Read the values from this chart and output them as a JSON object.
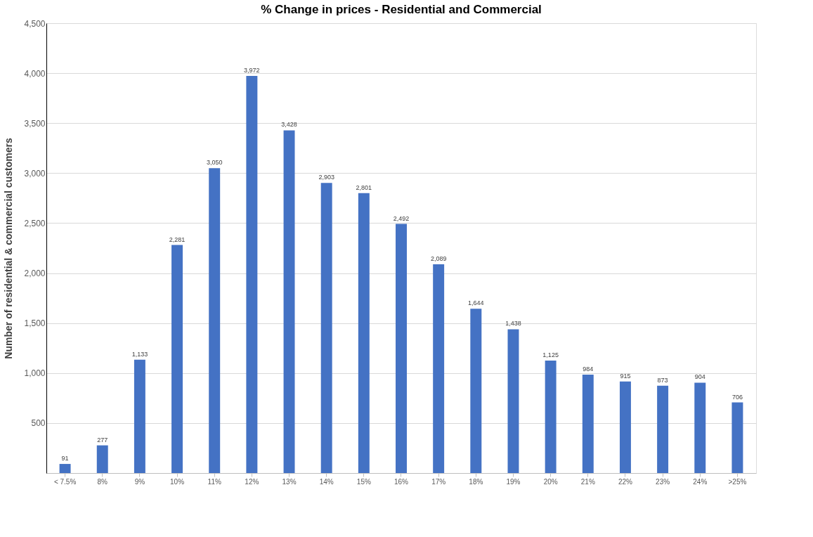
{
  "chart_data": {
    "type": "bar",
    "title": "% Change in prices - Residential and Commercial",
    "ylabel": "Number of residential & commercial customers",
    "categories": [
      "< 7.5%",
      "8%",
      "9%",
      "10%",
      "11%",
      "12%",
      "13%",
      "14%",
      "15%",
      "16%",
      "17%",
      "18%",
      "19%",
      "20%",
      "21%",
      "22%",
      "23%",
      "24%",
      ">25%"
    ],
    "values": [
      91,
      277,
      1133,
      2281,
      3050,
      3972,
      3428,
      2903,
      2801,
      2492,
      2089,
      1644,
      1438,
      1125,
      984,
      915,
      873,
      904,
      706
    ],
    "value_labels": [
      "91",
      "277",
      "1,133",
      "2,281",
      "3,050",
      "3,972",
      "3,428",
      "2,903",
      "2,801",
      "2,492",
      "2,089",
      "1,644",
      "1,438",
      "1,125",
      "984",
      "915",
      "873",
      "904",
      "706"
    ],
    "color": "#4472c4",
    "ylim": [
      0,
      4500
    ],
    "yticks": [
      500,
      {
        "value": 1000,
        "label": "1,000"
      },
      {
        "value": 1500,
        "label": "1,500"
      },
      {
        "value": 2000,
        "label": "2,000"
      },
      {
        "value": 2500,
        "label": "2,500"
      },
      {
        "value": 3000,
        "label": "3,000"
      },
      {
        "value": 3500,
        "label": "3,500"
      },
      {
        "value": 4000,
        "label": "4,000"
      },
      {
        "value": 4500,
        "label": "4,500"
      }
    ],
    "grid": "y"
  }
}
